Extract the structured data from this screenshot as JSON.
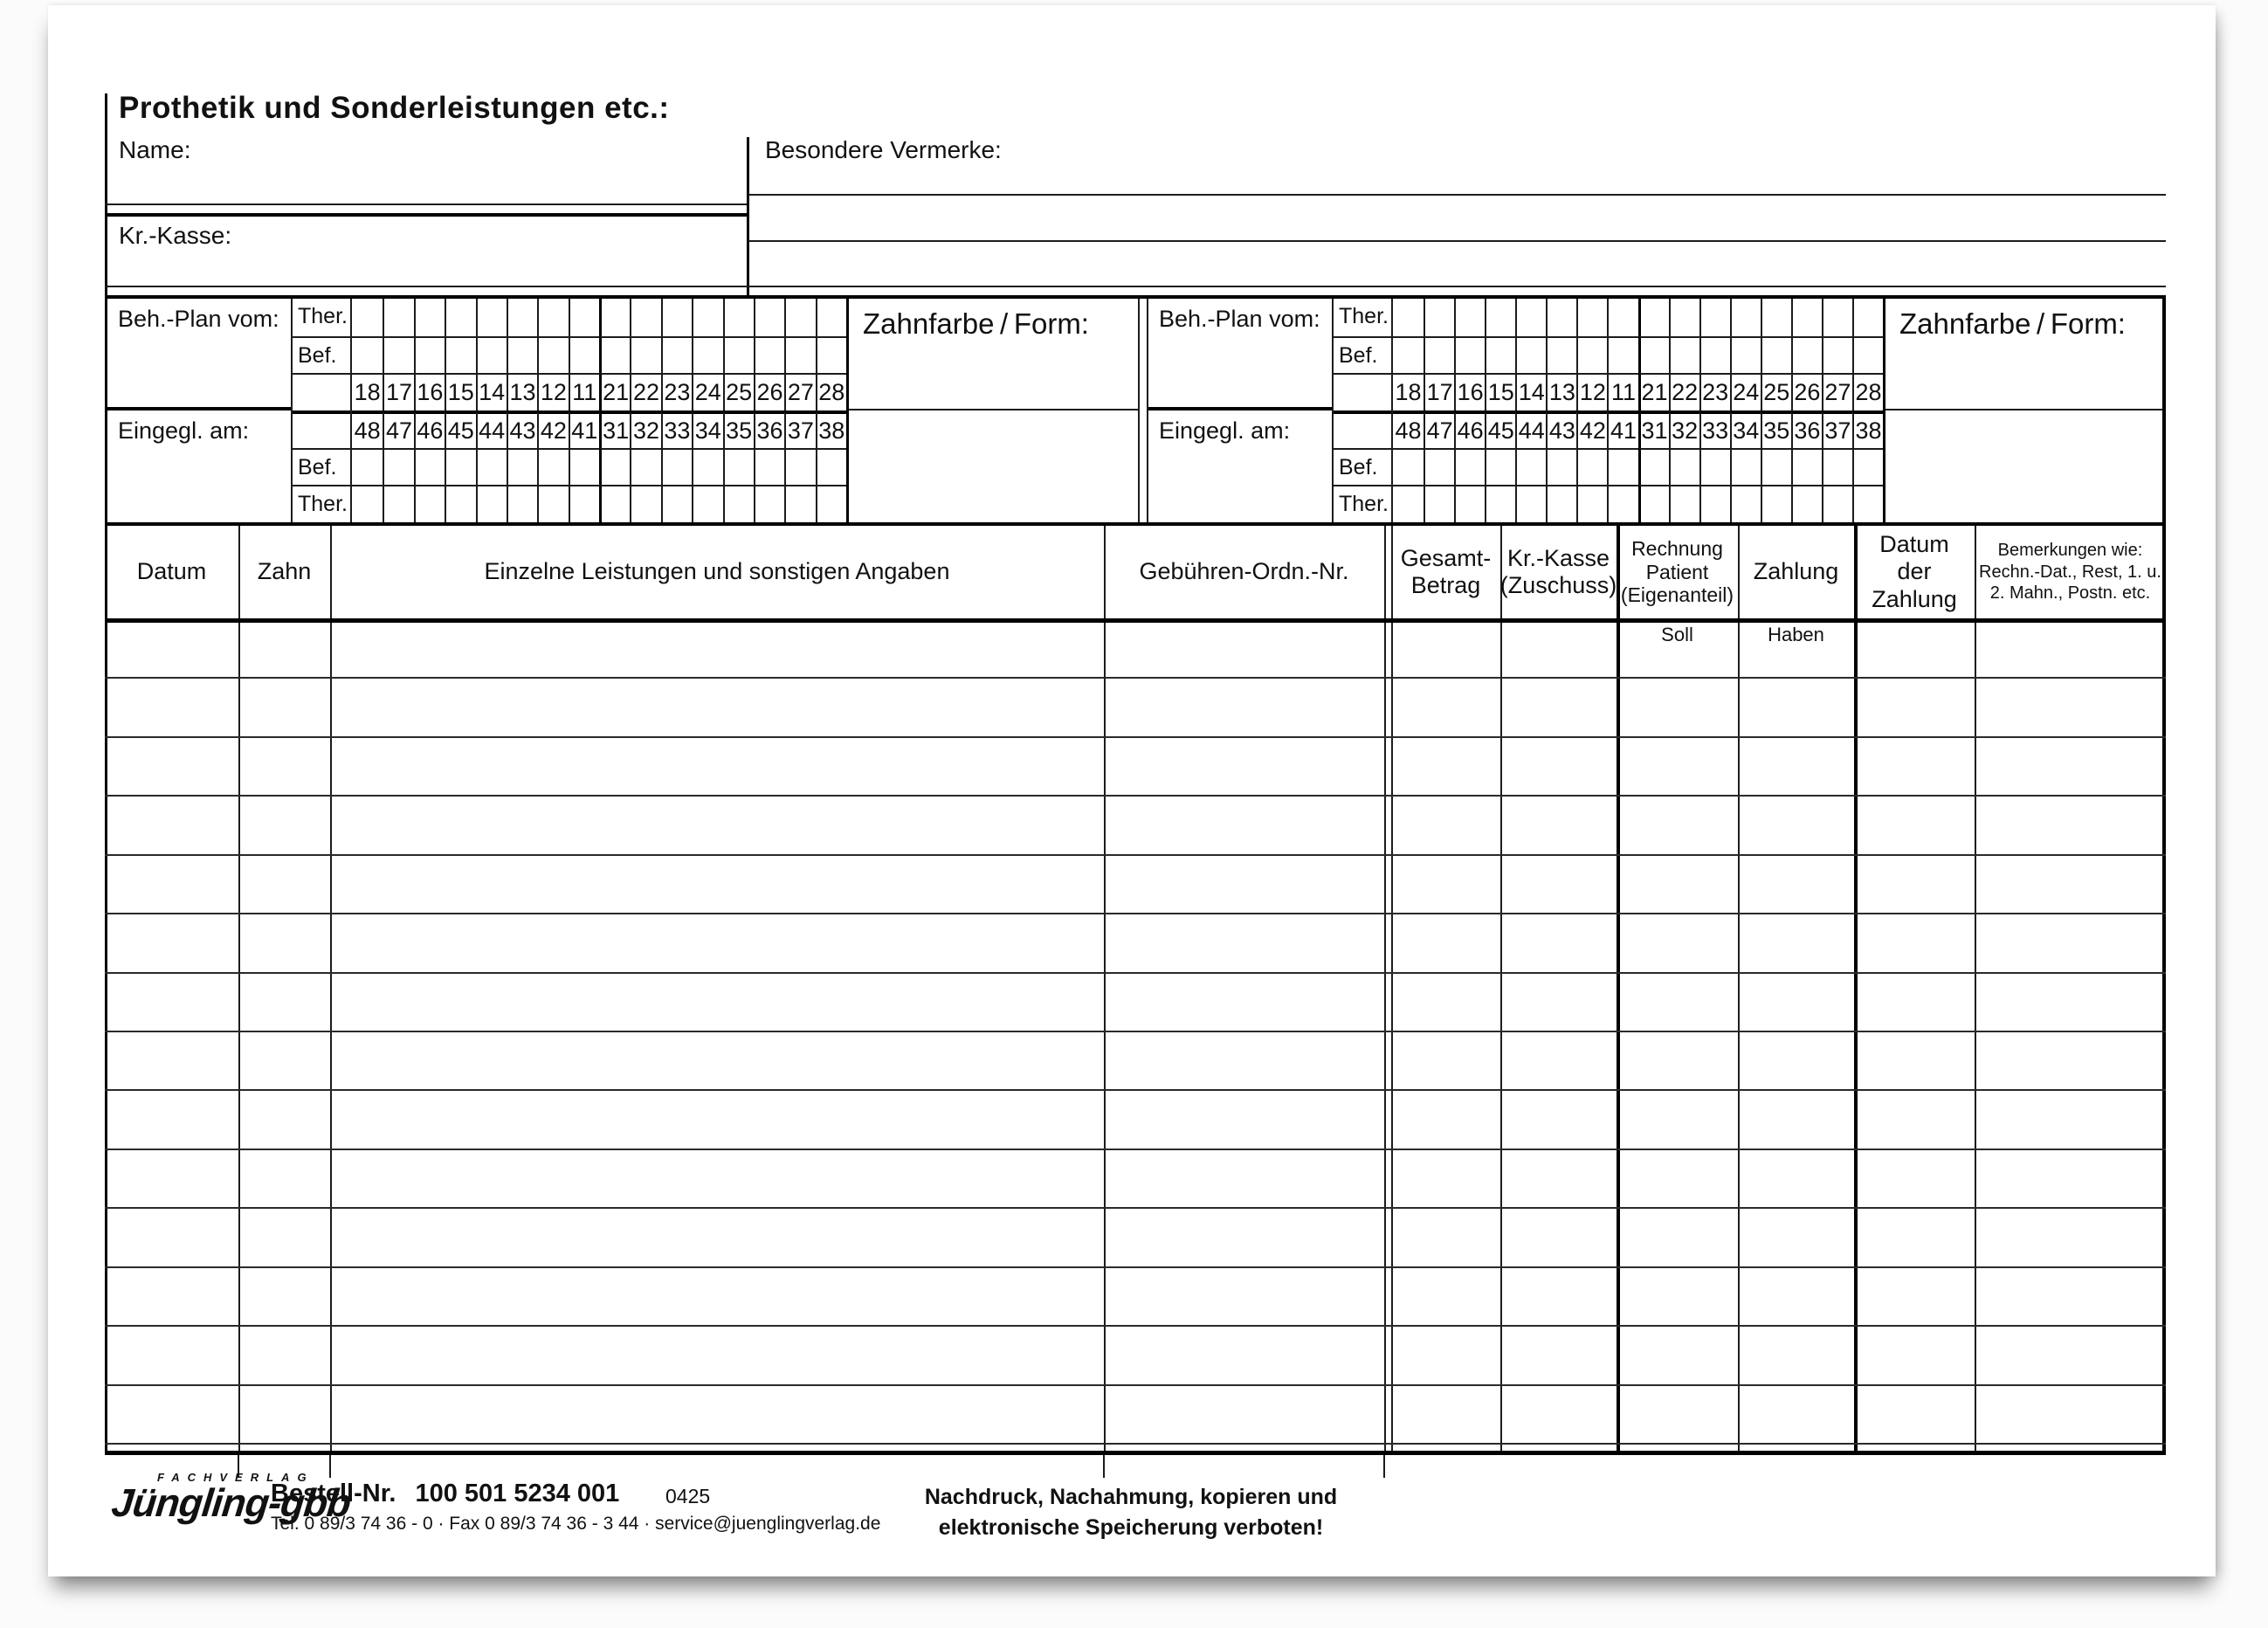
{
  "form": {
    "title": "Prothetik und Sonderleistungen etc.:",
    "name_label": "Name:",
    "krkasse_label": "Kr.-Kasse:",
    "vermerke_label": "Besondere Vermerke:"
  },
  "chart": {
    "beh_plan_label": "Beh.-Plan vom:",
    "eingegl_label": "Eingegl. am:",
    "zahnfarbe_label": "Zahnfarbe / Form:",
    "row_labels": [
      "Ther.",
      "Bef.",
      "",
      "",
      "Bef.",
      "Ther."
    ],
    "upper_teeth": [
      "18",
      "17",
      "16",
      "15",
      "14",
      "13",
      "12",
      "11",
      "21",
      "22",
      "23",
      "24",
      "25",
      "26",
      "27",
      "28"
    ],
    "lower_teeth": [
      "48",
      "47",
      "46",
      "45",
      "44",
      "43",
      "42",
      "41",
      "31",
      "32",
      "33",
      "34",
      "35",
      "36",
      "37",
      "38"
    ]
  },
  "table": {
    "columns": [
      {
        "label": "Datum"
      },
      {
        "label": "Zahn"
      },
      {
        "label": "Einzelne Leistungen und sonstigen Angaben"
      },
      {
        "label": "Gebühren-Ordn.-Nr."
      },
      {
        "label": "Gesamt-\nBetrag"
      },
      {
        "label": "Kr.-Kasse\n(Zuschuss)"
      },
      {
        "label": "Rechnung\nPatient\n(Eigenanteil)"
      },
      {
        "label": "Zahlung"
      },
      {
        "label": "Datum\nder\nZahlung"
      },
      {
        "label": "Bemerkungen wie:\nRechn.-Dat., Rest, 1. u.\n2. Mahn., Postn. etc."
      }
    ],
    "soll_label": "Soll",
    "haben_label": "Haben",
    "body_row_count": 14
  },
  "footer": {
    "logo_top": "FACHVERLAG",
    "logo_main": "Jüngling-gbb",
    "bestell_label": "Bestell-Nr.",
    "bestell_number": "100 501 5234 001",
    "code": "0425",
    "contact": "Tel. 0 89/3 74 36 - 0 · Fax 0 89/3 74 36 - 3 44 · service@juenglingverlag.de",
    "notice_line1": "Nachdruck, Nachahmung, kopieren und",
    "notice_line2": "elektronische Speicherung verboten!"
  },
  "colors": {
    "ink": "#1c1c1c",
    "paper": "#ffffff"
  }
}
